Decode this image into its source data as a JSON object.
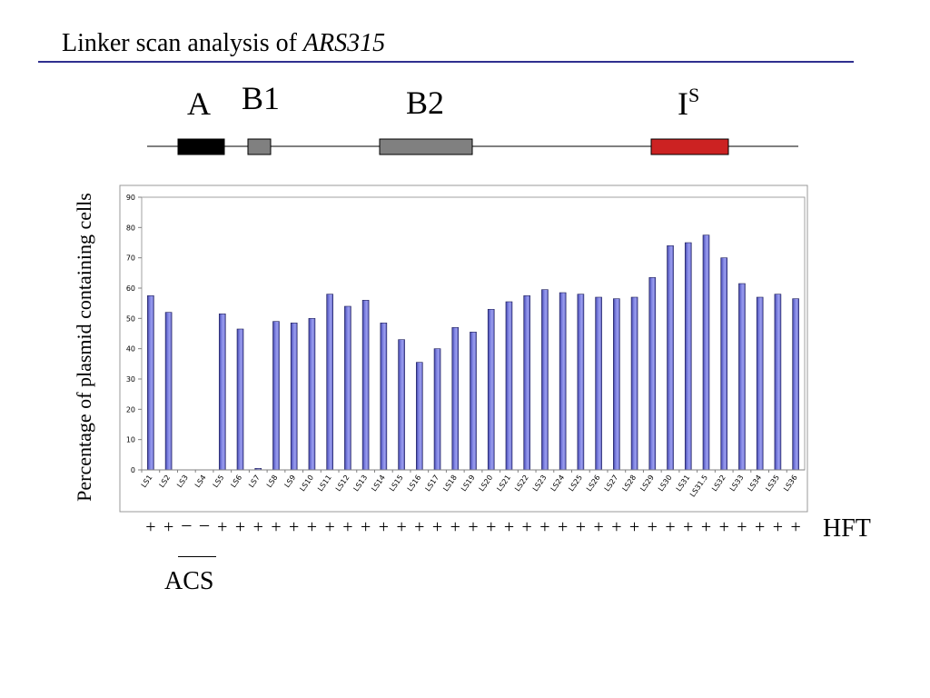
{
  "title": {
    "prefix": "Linker scan analysis of ",
    "emphasis": "ARS315"
  },
  "elements": [
    {
      "label": "A",
      "sup": "",
      "color": "#000000"
    },
    {
      "label": "B1",
      "sup": "",
      "color": "#808080"
    },
    {
      "label": "B2",
      "sup": "",
      "color": "#808080"
    },
    {
      "label": "I",
      "sup": "S",
      "color": "#cc2222"
    }
  ],
  "hft": {
    "label": "HFT",
    "values": [
      "+",
      "+",
      "–",
      "–",
      "+",
      "+",
      "+",
      "+",
      "+",
      "+",
      "+",
      "+",
      "+",
      "+",
      "+",
      "+",
      "+",
      "+",
      "+",
      "+",
      "+",
      "+",
      "+",
      "+",
      "+",
      "+",
      "+",
      "+",
      "+",
      "+",
      "+",
      "+",
      "+",
      "+",
      "+",
      "+",
      "+"
    ]
  },
  "acs": {
    "label": "ACS"
  },
  "chart_data": {
    "type": "bar",
    "ylabel": "Percentage of plasmid containing cells",
    "xlabel": "",
    "ylim": [
      0,
      90
    ],
    "yticks": [
      0,
      10,
      20,
      30,
      40,
      50,
      60,
      70,
      80,
      90
    ],
    "grid": false,
    "bar_color": "#7b7fe0",
    "categories": [
      "LS1",
      "LS2",
      "LS3",
      "LS4",
      "LS5",
      "LS6",
      "LS7",
      "LS8",
      "LS9",
      "LS10",
      "LS11",
      "LS12",
      "LS13",
      "LS14",
      "LS15",
      "LS16",
      "LS17",
      "LS18",
      "LS19",
      "LS20",
      "LS21",
      "LS22",
      "LS23",
      "LS24",
      "LS25",
      "LS26",
      "LS27",
      "LS28",
      "LS29",
      "LS30",
      "LS31",
      "LS31.5",
      "LS32",
      "LS33",
      "LS34",
      "LS35",
      "LS36"
    ],
    "values": [
      57.5,
      52,
      0,
      0,
      51.5,
      46.5,
      0.5,
      49,
      48.5,
      50,
      58,
      54,
      56,
      48.5,
      43,
      35.5,
      40,
      47,
      45.5,
      53,
      55.5,
      57.5,
      59.5,
      58.5,
      58,
      57,
      56.5,
      57,
      63.5,
      74,
      75,
      77.5,
      70,
      61.5,
      57,
      58,
      56.5
    ]
  }
}
